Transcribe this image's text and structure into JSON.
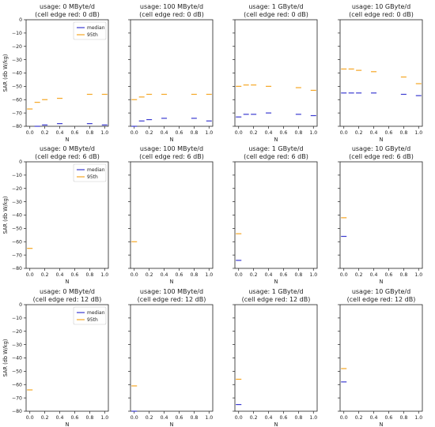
{
  "colors": {
    "median": "#3a3ad0",
    "p95": "#f5a623",
    "axis": "#222222"
  },
  "legend_labels": {
    "median": "median",
    "p95": "95th"
  },
  "chart_data": [
    {
      "type": "scatter",
      "title_line1": "usage: 0 MByte/d",
      "title_line2": "(cell edge red: 0 dB)",
      "xlabel": "N",
      "ylabel": "SAR (db W/kg)",
      "xlim": [
        -0.05,
        1.05
      ],
      "ylim": [
        -80,
        0
      ],
      "xticks": [
        "0.0",
        "0.2",
        "0.4",
        "0.6",
        "0.8",
        "1.0"
      ],
      "yticks": [
        "0",
        "−10",
        "−20",
        "−30",
        "−40",
        "−50",
        "−60",
        "−70",
        "−80"
      ],
      "legend": "upper right",
      "series": [
        {
          "name": "median",
          "x": [
            0.1,
            0.2,
            0.4,
            0.8,
            1.0
          ],
          "y": [
            -80,
            -79,
            -78,
            -78,
            -79
          ]
        },
        {
          "name": "95th",
          "x": [
            0.0,
            0.1,
            0.2,
            0.4,
            0.8,
            1.0
          ],
          "y": [
            -67,
            -62,
            -60,
            -59,
            -56,
            -56
          ]
        }
      ]
    },
    {
      "type": "scatter",
      "title_line1": "usage: 100 MByte/d",
      "title_line2": "(cell edge red: 0 dB)",
      "xlabel": "N",
      "ylabel": "",
      "xlim": [
        -0.05,
        1.05
      ],
      "ylim": [
        -80,
        0
      ],
      "xticks": [
        "0.0",
        "0.2",
        "0.4",
        "0.6",
        "0.8",
        "1.0"
      ],
      "yticks": [],
      "series": [
        {
          "name": "median",
          "x": [
            0.0,
            0.1,
            0.2,
            0.4,
            0.8,
            1.0
          ],
          "y": [
            -80,
            -76,
            -75,
            -74,
            -74,
            -76
          ]
        },
        {
          "name": "95th",
          "x": [
            0.0,
            0.1,
            0.2,
            0.4,
            0.8,
            1.0
          ],
          "y": [
            -60,
            -58,
            -56,
            -56,
            -56,
            -56
          ]
        }
      ]
    },
    {
      "type": "scatter",
      "title_line1": "usage: 1 GByte/d",
      "title_line2": "(cell edge red: 0 dB)",
      "xlabel": "N",
      "ylabel": "",
      "xlim": [
        -0.05,
        1.05
      ],
      "ylim": [
        -80,
        0
      ],
      "xticks": [
        "0.0",
        "0.2",
        "0.4",
        "0.6",
        "0.8",
        "1.0"
      ],
      "yticks": [],
      "series": [
        {
          "name": "median",
          "x": [
            0.0,
            0.1,
            0.2,
            0.4,
            0.8,
            1.0
          ],
          "y": [
            -73,
            -71,
            -71,
            -70,
            -71,
            -72
          ]
        },
        {
          "name": "95th",
          "x": [
            0.0,
            0.1,
            0.2,
            0.4,
            0.8,
            1.0
          ],
          "y": [
            -50,
            -49,
            -49,
            -50,
            -51,
            -53
          ]
        }
      ]
    },
    {
      "type": "scatter",
      "title_line1": "usage: 10 GByte/d",
      "title_line2": "(cell edge red: 0 dB)",
      "xlabel": "N",
      "ylabel": "",
      "xlim": [
        -0.05,
        1.05
      ],
      "ylim": [
        -80,
        0
      ],
      "xticks": [
        "0.0",
        "0.2",
        "0.4",
        "0.6",
        "0.8",
        "1.0"
      ],
      "yticks": [],
      "series": [
        {
          "name": "median",
          "x": [
            0.0,
            0.1,
            0.2,
            0.4,
            0.8,
            1.0
          ],
          "y": [
            -55,
            -55,
            -55,
            -55,
            -56,
            -57
          ]
        },
        {
          "name": "95th",
          "x": [
            0.0,
            0.1,
            0.2,
            0.4,
            0.8,
            1.0
          ],
          "y": [
            -37,
            -37,
            -38,
            -39,
            -43,
            -48
          ]
        }
      ]
    },
    {
      "type": "scatter",
      "title_line1": "usage: 0 MByte/d",
      "title_line2": "(cell edge red: 6 dB)",
      "xlabel": "N",
      "ylabel": "SAR (db W/kg)",
      "xlim": [
        -0.05,
        1.05
      ],
      "ylim": [
        -80,
        0
      ],
      "xticks": [
        "0.0",
        "0.2",
        "0.4",
        "0.6",
        "0.8",
        "1.0"
      ],
      "yticks": [
        "0",
        "−10",
        "−20",
        "−30",
        "−40",
        "−50",
        "−60",
        "−70",
        "−80"
      ],
      "legend": "upper right",
      "series": [
        {
          "name": "median",
          "x": [],
          "y": []
        },
        {
          "name": "95th",
          "x": [
            0.0
          ],
          "y": [
            -65
          ]
        }
      ]
    },
    {
      "type": "scatter",
      "title_line1": "usage: 100 MByte/d",
      "title_line2": "(cell edge red: 6 dB)",
      "xlabel": "N",
      "ylabel": "",
      "xlim": [
        -0.05,
        1.05
      ],
      "ylim": [
        -80,
        0
      ],
      "xticks": [
        "0.0",
        "0.2",
        "0.4",
        "0.6",
        "0.8",
        "1.0"
      ],
      "yticks": [],
      "series": [
        {
          "name": "median",
          "x": [],
          "y": []
        },
        {
          "name": "95th",
          "x": [
            0.0
          ],
          "y": [
            -60
          ]
        }
      ]
    },
    {
      "type": "scatter",
      "title_line1": "usage: 1 GByte/d",
      "title_line2": "(cell edge red: 6 dB)",
      "xlabel": "N",
      "ylabel": "",
      "xlim": [
        -0.05,
        1.05
      ],
      "ylim": [
        -80,
        0
      ],
      "xticks": [
        "0.0",
        "0.2",
        "0.4",
        "0.6",
        "0.8",
        "1.0"
      ],
      "yticks": [],
      "series": [
        {
          "name": "median",
          "x": [
            0.0
          ],
          "y": [
            -74
          ]
        },
        {
          "name": "95th",
          "x": [
            0.0
          ],
          "y": [
            -54
          ]
        }
      ]
    },
    {
      "type": "scatter",
      "title_line1": "usage: 10 GByte/d",
      "title_line2": "(cell edge red: 6 dB)",
      "xlabel": "N",
      "ylabel": "",
      "xlim": [
        -0.05,
        1.05
      ],
      "ylim": [
        -80,
        0
      ],
      "xticks": [
        "0.0",
        "0.2",
        "0.4",
        "0.6",
        "0.8",
        "1.0"
      ],
      "yticks": [],
      "series": [
        {
          "name": "median",
          "x": [
            0.0
          ],
          "y": [
            -56
          ]
        },
        {
          "name": "95th",
          "x": [
            0.0
          ],
          "y": [
            -42
          ]
        }
      ]
    },
    {
      "type": "scatter",
      "title_line1": "usage: 0 MByte/d",
      "title_line2": "(cell edge red: 12 dB)",
      "xlabel": "N",
      "ylabel": "SAR (db W/kg)",
      "xlim": [
        -0.05,
        1.05
      ],
      "ylim": [
        -80,
        0
      ],
      "xticks": [
        "0.0",
        "0.2",
        "0.4",
        "0.6",
        "0.8",
        "1.0"
      ],
      "yticks": [
        "0",
        "−10",
        "−20",
        "−30",
        "−40",
        "−50",
        "−60",
        "−70",
        "−80"
      ],
      "legend": "upper right",
      "series": [
        {
          "name": "median",
          "x": [],
          "y": []
        },
        {
          "name": "95th",
          "x": [
            0.0
          ],
          "y": [
            -64
          ]
        }
      ]
    },
    {
      "type": "scatter",
      "title_line1": "usage: 100 MByte/d",
      "title_line2": "(cell edge red: 12 dB)",
      "xlabel": "N",
      "ylabel": "",
      "xlim": [
        -0.05,
        1.05
      ],
      "ylim": [
        -80,
        0
      ],
      "xticks": [
        "0.0",
        "0.2",
        "0.4",
        "0.6",
        "0.8",
        "1.0"
      ],
      "yticks": [],
      "series": [
        {
          "name": "median",
          "x": [
            0.0
          ],
          "y": [
            -80
          ]
        },
        {
          "name": "95th",
          "x": [
            0.0
          ],
          "y": [
            -61
          ]
        }
      ]
    },
    {
      "type": "scatter",
      "title_line1": "usage: 1 GByte/d",
      "title_line2": "(cell edge red: 12 dB)",
      "xlabel": "N",
      "ylabel": "",
      "xlim": [
        -0.05,
        1.05
      ],
      "ylim": [
        -80,
        0
      ],
      "xticks": [
        "0.0",
        "0.2",
        "0.4",
        "0.6",
        "0.8",
        "1.0"
      ],
      "yticks": [],
      "series": [
        {
          "name": "median",
          "x": [
            0.0
          ],
          "y": [
            -75
          ]
        },
        {
          "name": "95th",
          "x": [
            0.0
          ],
          "y": [
            -56
          ]
        }
      ]
    },
    {
      "type": "scatter",
      "title_line1": "usage: 10 GByte/d",
      "title_line2": "(cell edge red: 12 dB)",
      "xlabel": "N",
      "ylabel": "",
      "xlim": [
        -0.05,
        1.05
      ],
      "ylim": [
        -80,
        0
      ],
      "xticks": [
        "0.0",
        "0.2",
        "0.4",
        "0.6",
        "0.8",
        "1.0"
      ],
      "yticks": [],
      "series": [
        {
          "name": "median",
          "x": [
            0.0
          ],
          "y": [
            -58
          ]
        },
        {
          "name": "95th",
          "x": [
            0.0
          ],
          "y": [
            -48
          ]
        }
      ]
    }
  ]
}
